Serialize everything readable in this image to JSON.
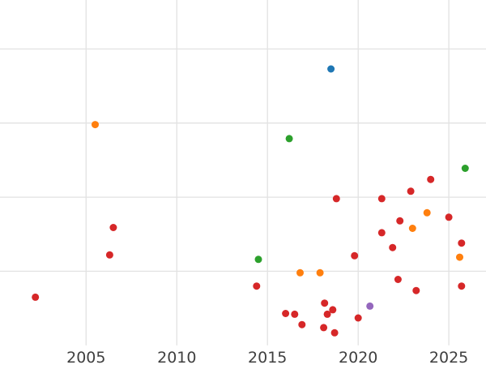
{
  "chart_data": {
    "type": "scatter",
    "title": "",
    "xlabel": "",
    "ylabel": "",
    "grid": true,
    "legend": "none",
    "x_ticks": [
      2005,
      2010,
      2015,
      2020,
      2025
    ],
    "x_tick_labels": [
      "2005",
      "2010",
      "2015",
      "2020",
      "2025"
    ],
    "xlim": [
      2000.25,
      2027.05
    ],
    "ylim": [
      -0.265,
      4.661
    ],
    "y_gridlines": [
      1,
      2,
      3,
      4
    ],
    "marker_radius_px": 4.5,
    "styles": {
      "background": "#ffffff",
      "grid_color": "#e2e2e2",
      "tick_label_color": "#3f3f3f",
      "red": "#d62728",
      "orange": "#ff7f0e",
      "green": "#2ca02c",
      "blue": "#1f77b4",
      "purple": "#9467bd"
    },
    "series": [
      {
        "name": "red",
        "color": "#d62728",
        "points": [
          [
            2024.0,
            2.24
          ],
          [
            2022.9,
            2.08
          ],
          [
            2018.8,
            1.98
          ],
          [
            2021.3,
            1.98
          ],
          [
            2025.0,
            1.73
          ],
          [
            2022.3,
            1.68
          ],
          [
            2006.5,
            1.59
          ],
          [
            2021.3,
            1.52
          ],
          [
            2025.7,
            1.38
          ],
          [
            2021.9,
            1.32
          ],
          [
            2006.3,
            1.22
          ],
          [
            2019.8,
            1.21
          ],
          [
            2022.2,
            0.89
          ],
          [
            2014.4,
            0.8
          ],
          [
            2025.7,
            0.8
          ],
          [
            2023.2,
            0.74
          ],
          [
            2002.2,
            0.65
          ],
          [
            2018.15,
            0.57
          ],
          [
            2018.6,
            0.48
          ],
          [
            2016.0,
            0.43
          ],
          [
            2016.5,
            0.42
          ],
          [
            2018.3,
            0.42
          ],
          [
            2020.0,
            0.37
          ],
          [
            2016.9,
            0.28
          ],
          [
            2018.1,
            0.24
          ],
          [
            2018.7,
            0.17
          ]
        ]
      },
      {
        "name": "orange",
        "color": "#ff7f0e",
        "points": [
          [
            2005.5,
            2.98
          ],
          [
            2023.8,
            1.79
          ],
          [
            2023.0,
            1.58
          ],
          [
            2025.6,
            1.19
          ],
          [
            2016.8,
            0.98
          ],
          [
            2017.9,
            0.98
          ]
        ]
      },
      {
        "name": "green",
        "color": "#2ca02c",
        "points": [
          [
            2016.2,
            2.79
          ],
          [
            2025.9,
            2.39
          ],
          [
            2014.5,
            1.16
          ]
        ]
      },
      {
        "name": "blue",
        "color": "#1f77b4",
        "points": [
          [
            2018.5,
            3.73
          ]
        ]
      },
      {
        "name": "purple",
        "color": "#9467bd",
        "points": [
          [
            2020.65,
            0.53
          ]
        ]
      }
    ]
  }
}
